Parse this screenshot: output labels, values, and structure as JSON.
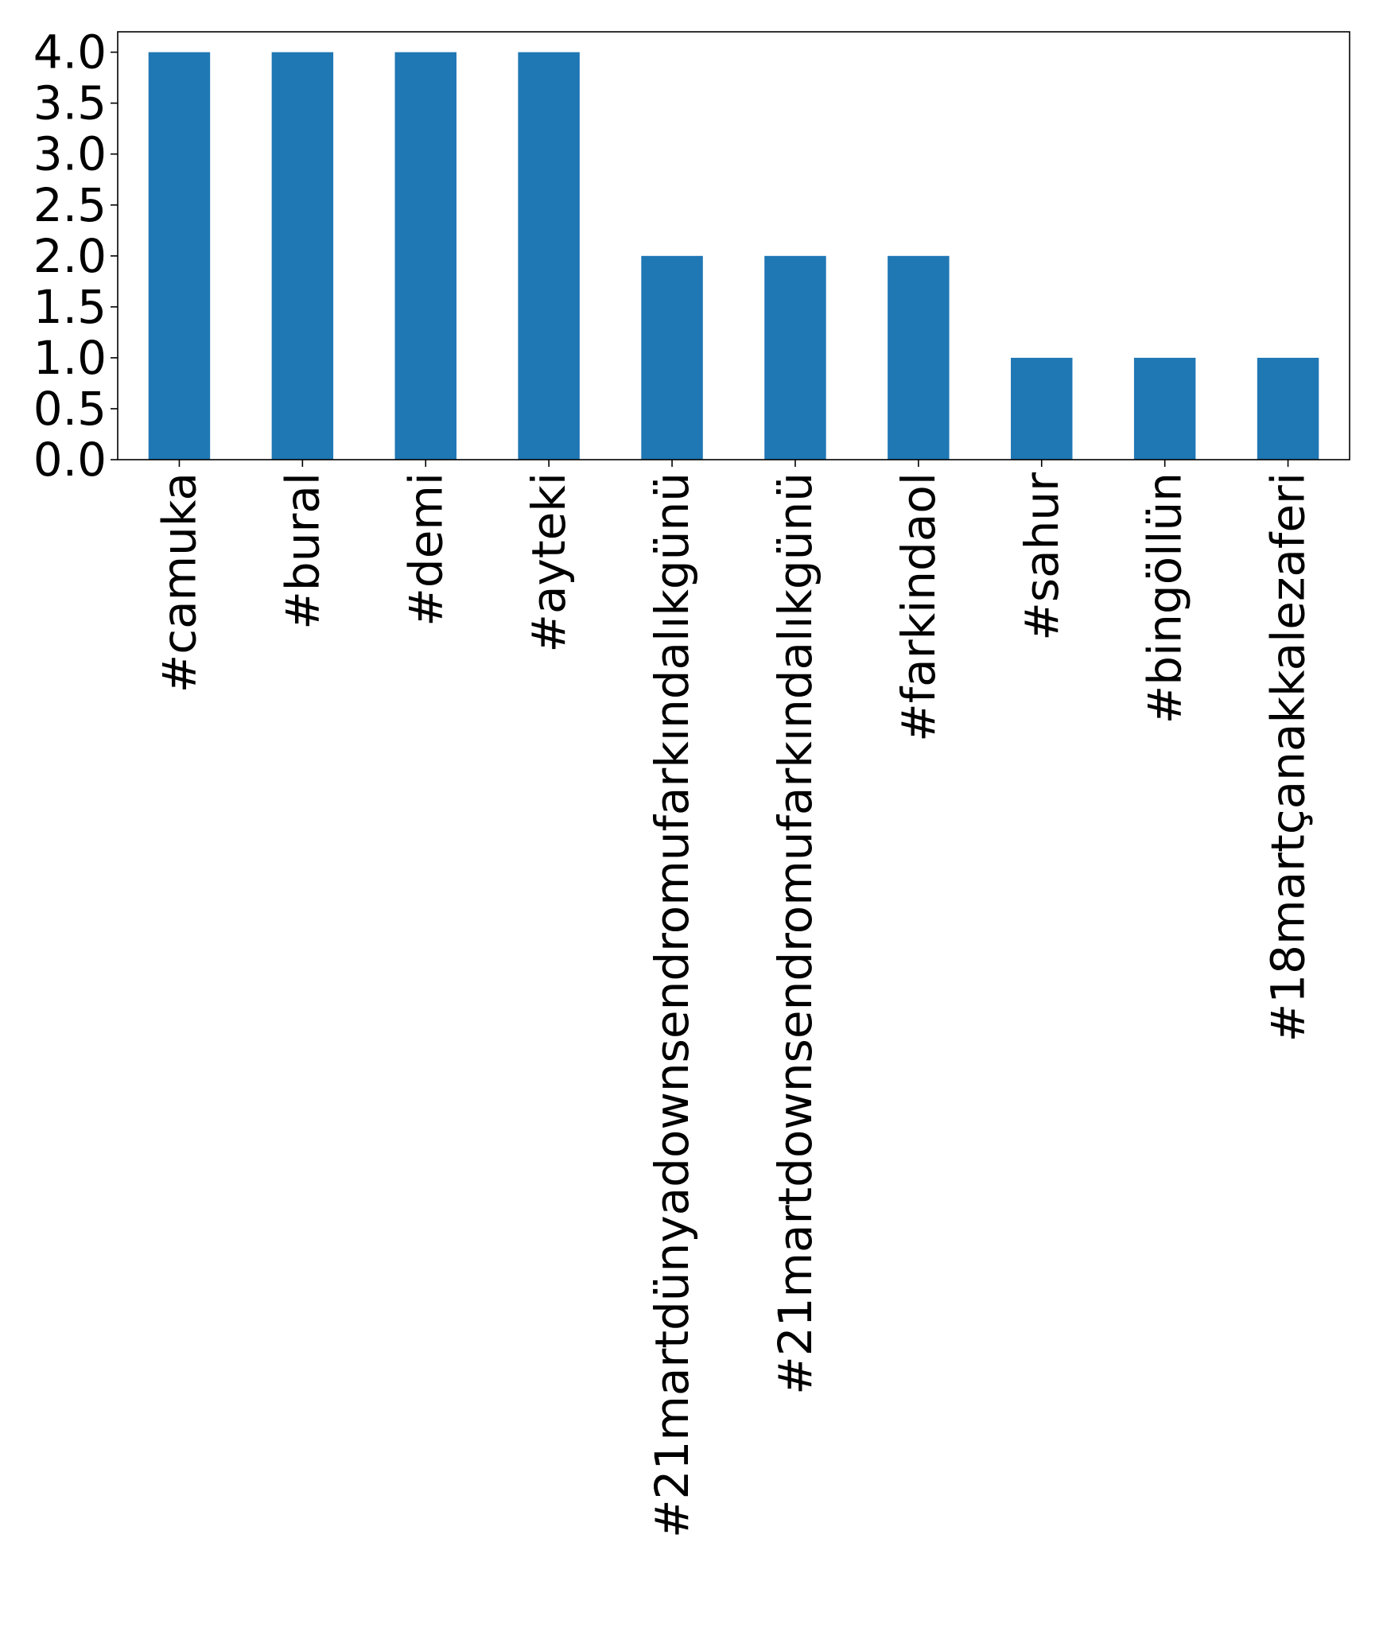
{
  "chart_data": {
    "type": "bar",
    "categories": [
      "#camuka",
      "#bural",
      "#demi",
      "#ayteki",
      "#21martdünyadownsendromufarkındalıkgünü",
      "#21martdownsendromufarkındalıkgünü",
      "#farkindaol",
      "#sahur",
      "#bingöllün",
      "#18martçanakkalezaferi"
    ],
    "values": [
      4,
      4,
      4,
      4,
      2,
      2,
      2,
      1,
      1,
      1
    ],
    "ylim": [
      0,
      4.2
    ],
    "yticks": [
      "0.0",
      "0.5",
      "1.0",
      "1.5",
      "2.0",
      "2.5",
      "3.0",
      "3.5",
      "4.0"
    ],
    "colors": {
      "bar": "#1f77b4",
      "axis": "#000000",
      "background": "#ffffff"
    },
    "grid": false,
    "legend": "none"
  }
}
